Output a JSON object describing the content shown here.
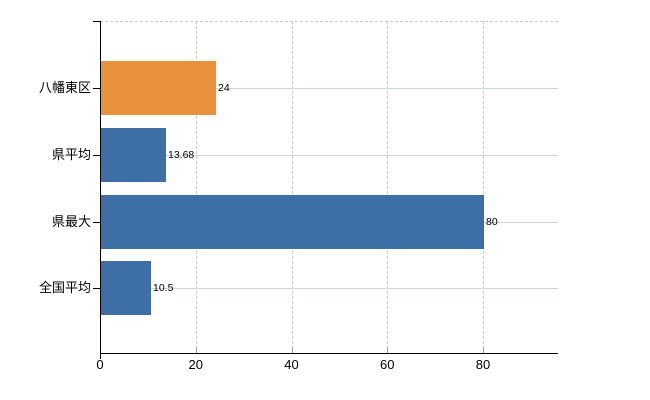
{
  "chart_data": {
    "type": "bar",
    "orientation": "horizontal",
    "title": "",
    "xlabel": "",
    "ylabel": "",
    "categories": [
      "八幡東区",
      "県平均",
      "県最大",
      "全国平均"
    ],
    "values": [
      24,
      13.68,
      80,
      10.5
    ],
    "value_labels": [
      "24",
      "13.68",
      "80",
      "10.5"
    ],
    "bar_colors": [
      "#E8913D",
      "#3D6FA6",
      "#3D6FA6",
      "#3D6FA6"
    ],
    "x_ticks": [
      0,
      20,
      40,
      60,
      80
    ],
    "x_tick_labels": [
      "0",
      "20",
      "40",
      "60",
      "80"
    ],
    "xlim": [
      0,
      95.7
    ],
    "grid": true,
    "v_gridlines": "dashed",
    "h_gridlines": "solid",
    "legend": false
  },
  "colors": {
    "bar_blue": "#3D6FA6",
    "bar_orange": "#E8913D",
    "axis": "#000000",
    "h_grid": "#CDD7CC",
    "v_grid": "#C9C9D2",
    "text": "#000000",
    "background": "#FFFFFF"
  }
}
